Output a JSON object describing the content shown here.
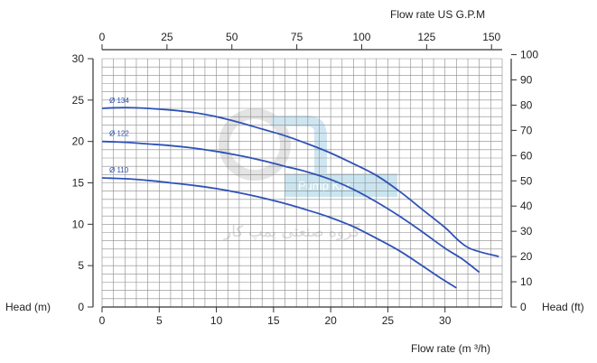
{
  "chart_data": {
    "type": "line",
    "x_bottom": {
      "label": "Flow rate  (m ³/h)",
      "range": [
        0,
        35
      ],
      "ticks": [
        0,
        5,
        10,
        15,
        20,
        25,
        30
      ]
    },
    "x_top": {
      "label": "Flow rate US  G.P.M",
      "range": [
        0,
        154.1
      ],
      "ticks": [
        0,
        25,
        50,
        75,
        100,
        125,
        150
      ]
    },
    "y_left": {
      "label": "Head (m)",
      "range": [
        0,
        30
      ],
      "ticks": [
        0,
        5,
        10,
        15,
        20,
        25,
        30
      ]
    },
    "y_right": {
      "label": "Head (ft)",
      "range": [
        0,
        98.4
      ],
      "ticks": [
        0,
        10,
        20,
        30,
        40,
        50,
        60,
        70,
        80,
        90,
        100
      ]
    },
    "grid": true,
    "series": [
      {
        "name": "Ø 134",
        "color": "#2f52b8",
        "points": [
          [
            0,
            24.0
          ],
          [
            2,
            24.1
          ],
          [
            4,
            24.0
          ],
          [
            6,
            23.8
          ],
          [
            8,
            23.5
          ],
          [
            10,
            23.0
          ],
          [
            12,
            22.3
          ],
          [
            14,
            21.5
          ],
          [
            16,
            20.7
          ],
          [
            18,
            19.7
          ],
          [
            20,
            18.6
          ],
          [
            22,
            17.3
          ],
          [
            24,
            15.9
          ],
          [
            26,
            14.0
          ],
          [
            28,
            11.8
          ],
          [
            30,
            9.6
          ],
          [
            32,
            7.2
          ],
          [
            34.7,
            6.1
          ]
        ]
      },
      {
        "name": "Ø 122",
        "color": "#2f52b8",
        "points": [
          [
            0,
            20.0
          ],
          [
            2,
            19.9
          ],
          [
            4,
            19.7
          ],
          [
            6,
            19.5
          ],
          [
            8,
            19.2
          ],
          [
            10,
            18.8
          ],
          [
            12,
            18.3
          ],
          [
            14,
            17.7
          ],
          [
            16,
            17.0
          ],
          [
            18,
            16.3
          ],
          [
            20,
            15.4
          ],
          [
            22,
            14.2
          ],
          [
            24,
            12.7
          ],
          [
            26,
            11.0
          ],
          [
            28,
            9.1
          ],
          [
            30,
            7.1
          ],
          [
            31.5,
            5.8
          ],
          [
            33,
            4.2
          ]
        ]
      },
      {
        "name": "Ø 110",
        "color": "#2f52b8",
        "points": [
          [
            0,
            15.6
          ],
          [
            2,
            15.5
          ],
          [
            4,
            15.3
          ],
          [
            6,
            15.0
          ],
          [
            8,
            14.7
          ],
          [
            10,
            14.3
          ],
          [
            12,
            13.8
          ],
          [
            14,
            13.2
          ],
          [
            16,
            12.5
          ],
          [
            18,
            11.7
          ],
          [
            20,
            10.8
          ],
          [
            22,
            9.7
          ],
          [
            24,
            8.3
          ],
          [
            26,
            6.8
          ],
          [
            28,
            5.0
          ],
          [
            29.5,
            3.6
          ],
          [
            31,
            2.3
          ]
        ]
      }
    ]
  },
  "watermark": {
    "brand": "Pump Kar",
    "text": "گروه صنعتی پمپ کار"
  }
}
